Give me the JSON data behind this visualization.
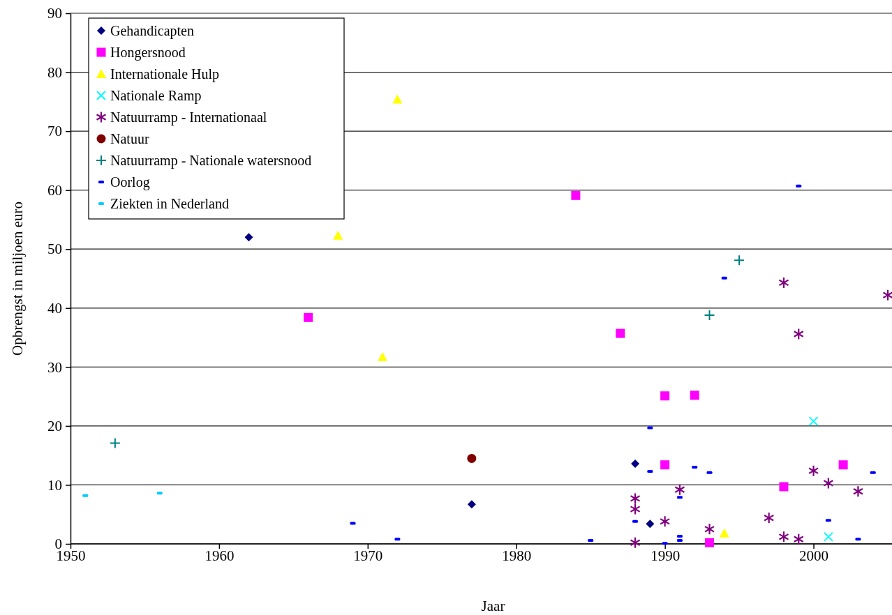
{
  "chart_data": {
    "type": "scatter",
    "xlabel": "Jaar",
    "ylabel": "Opbrengst in miljoen euro",
    "xlim": [
      1950,
      2005
    ],
    "xticks": [
      1950,
      1960,
      1970,
      1980,
      1990,
      2000
    ],
    "ylim": [
      0,
      90
    ],
    "yticks": [
      0,
      10,
      20,
      30,
      40,
      50,
      60,
      70,
      80,
      90
    ],
    "grid": "y",
    "legend": "top left",
    "series": [
      {
        "name": "Gehandicapten",
        "color": "#000080",
        "marker": "diamond",
        "x": [
          1962,
          1977,
          1988,
          1989
        ],
        "values": [
          52.0,
          6.7,
          13.6,
          3.4
        ]
      },
      {
        "name": "Hongersnood",
        "color": "#ff00ff",
        "marker": "square",
        "x": [
          1966,
          1984,
          1987,
          1990,
          1990,
          1992,
          1993,
          1998,
          2002
        ],
        "values": [
          38.4,
          59.1,
          35.7,
          25.1,
          13.4,
          25.2,
          0.2,
          9.7,
          13.4
        ]
      },
      {
        "name": "Internationale Hulp",
        "color": "#ffff00",
        "marker": "triangle",
        "x": [
          1968,
          1971,
          1972,
          1994
        ],
        "values": [
          52.3,
          31.7,
          75.4,
          1.8
        ]
      },
      {
        "name": "Nationale Ramp",
        "color": "#00ffff",
        "marker": "x",
        "x": [
          2000,
          2001
        ],
        "values": [
          20.8,
          1.2
        ]
      },
      {
        "name": "Natuurramp - Internationaal",
        "color": "#800080",
        "marker": "star",
        "x": [
          1988,
          1988,
          1988,
          1990,
          1991,
          1993,
          1997,
          1998,
          1998,
          1999,
          1999,
          2000,
          2001,
          2003,
          2005
        ],
        "values": [
          7.7,
          5.9,
          0.2,
          3.8,
          9.2,
          2.5,
          4.4,
          1.2,
          44.3,
          0.8,
          35.6,
          12.4,
          10.3,
          8.9,
          42.2
        ]
      },
      {
        "name": "Natuur",
        "color": "#800000",
        "marker": "circle",
        "x": [
          1977
        ],
        "values": [
          14.5
        ]
      },
      {
        "name": "Natuurramp - Nationale watersnood",
        "color": "#008080",
        "marker": "cross",
        "x": [
          1953,
          1993,
          1995
        ],
        "values": [
          17.1,
          38.8,
          48.1
        ]
      },
      {
        "name": "Oorlog",
        "color": "#0000ff",
        "x": [
          1969,
          1972,
          1985,
          1988,
          1989,
          1989,
          1990,
          1991,
          1991,
          1991,
          1992,
          1993,
          1994,
          1999,
          2001,
          2003,
          2004
        ],
        "values": [
          3.5,
          0.8,
          0.6,
          3.8,
          19.7,
          12.3,
          0.1,
          7.9,
          1.3,
          0.6,
          13.0,
          12.1,
          45.1,
          60.7,
          4.0,
          0.8,
          12.1
        ]
      },
      {
        "name": "Ziekten in Nederland",
        "color": "#00ccff",
        "x": [
          1951,
          1956
        ],
        "values": [
          8.2,
          8.6
        ]
      }
    ]
  }
}
